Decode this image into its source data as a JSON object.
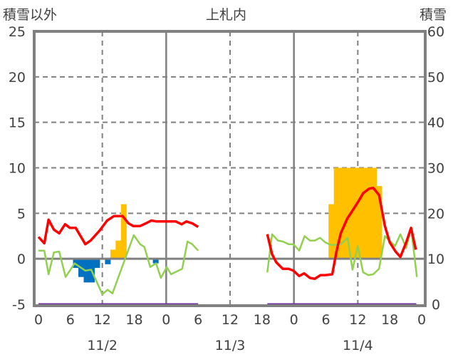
{
  "chart_data": {
    "type": "bar+line",
    "title": "上札内",
    "ylabel_left": "積雪以外",
    "ylabel_right": "積雪",
    "ylim_left": [
      -5,
      25
    ],
    "ylim_right": [
      0,
      60
    ],
    "yticks_left": [
      "-5",
      "0",
      "5",
      "10",
      "15",
      "20",
      "25"
    ],
    "yticks_right": [
      "0",
      "10",
      "20",
      "30",
      "40",
      "50",
      "60"
    ],
    "x_unit": "hours from 11/2 00:00",
    "xlim": [
      0,
      72
    ],
    "xtick_labels": [
      "0",
      "6",
      "12",
      "18",
      "0",
      "6",
      "12",
      "18",
      "0",
      "6",
      "12",
      "18",
      "0"
    ],
    "day_labels": [
      {
        "label": "11/2",
        "hour": 12
      },
      {
        "label": "11/3",
        "hour": 36
      },
      {
        "label": "11/4",
        "hour": 60
      }
    ],
    "grid": "horizontal dashed every 5; vertical solid at midnight, dashed at noon",
    "colors": {
      "red": "#ff0000",
      "green": "#92d050",
      "orange": "#ffc000",
      "blue": "#0070c0",
      "purple": "#7030a0",
      "frame": "#808080"
    },
    "bars_positive": {
      "name": "orange bars",
      "axis": "left",
      "x": [
        14,
        15,
        16,
        55,
        56,
        57,
        58,
        59,
        60,
        61,
        62,
        63,
        64
      ],
      "values": [
        1,
        2,
        6,
        6,
        10,
        10,
        10,
        10,
        10,
        10,
        10,
        10,
        8
      ]
    },
    "bars_negative": {
      "name": "blue bars",
      "axis": "left",
      "x": [
        7,
        8,
        9,
        10,
        11,
        13,
        22
      ],
      "values": [
        -1,
        -2,
        -2.6,
        -2.6,
        -1,
        -0.6,
        -0.5
      ]
    },
    "series": [
      {
        "name": "red line",
        "axis": "left",
        "segments": [
          {
            "x": [
              0,
              1.1,
              1.9,
              2.9,
              3.9,
              5,
              5.9,
              7,
              8.8,
              9.8,
              11.5,
              12.9,
              14.2,
              15.8,
              16.9,
              17.8,
              19.1,
              20.2,
              21.2,
              22.2,
              25.8,
              26.9,
              27.8,
              28.9,
              30
            ],
            "y": [
              2.4,
              1.7,
              4.3,
              3.2,
              2.8,
              3.8,
              3.4,
              3.4,
              1.6,
              2.0,
              3.1,
              4.2,
              4.7,
              4.7,
              3.9,
              3.6,
              3.6,
              3.9,
              4.2,
              4.1,
              4.1,
              3.8,
              4.1,
              3.9,
              3.5
            ]
          },
          {
            "x": [
              43,
              43.9,
              44.7,
              45.9,
              47,
              47.9,
              49,
              49.9,
              51,
              51.9,
              53,
              53.9,
              55.2,
              56,
              56.8,
              58,
              59,
              60.1,
              61,
              62.1,
              62.9,
              64,
              65.1,
              66,
              67.1,
              68,
              69.1,
              70,
              70.9
            ],
            "y": [
              2.7,
              0.5,
              -0.4,
              -1.1,
              -1.1,
              -1.3,
              -1.9,
              -1.6,
              -2.1,
              -2.2,
              -1.8,
              -1.8,
              -1.7,
              0.8,
              2.8,
              4.4,
              5.3,
              6.3,
              7.2,
              7.7,
              7.8,
              7.0,
              3.6,
              1.8,
              0.8,
              0.2,
              1.8,
              3.4,
              1.0
            ]
          }
        ]
      },
      {
        "name": "green line",
        "axis": "left",
        "segments": [
          {
            "x": [
              0,
              1.1,
              1.9,
              2.9,
              3.9,
              5.1,
              6.8,
              8.8,
              9.9,
              12,
              13,
              13.9,
              17.9,
              19.1,
              19.9,
              21,
              22.1,
              23,
              24.1,
              24.9,
              27,
              28,
              28.9,
              30
            ],
            "y": [
              0.9,
              0.9,
              -1.7,
              0.7,
              0.8,
              -2.0,
              -0.5,
              -1.3,
              -1.2,
              -3.9,
              -3.4,
              -3.8,
              2.6,
              1.6,
              1.3,
              -0.9,
              -0.5,
              -2.1,
              -0.9,
              -1.7,
              -1.1,
              1.9,
              1.6,
              0.9
            ]
          },
          {
            "x": [
              43,
              43.9,
              45,
              45.9,
              47,
              47.9,
              49,
              50,
              51,
              51.9,
              52.9,
              53.9,
              55,
              56.8,
              58.1,
              59,
              60,
              61,
              62,
              62.9,
              64,
              65.1,
              67,
              68,
              69.1,
              70,
              71.1
            ],
            "y": [
              -1.5,
              2.7,
              2.0,
              1.9,
              1.6,
              1.6,
              0.9,
              2.5,
              2.0,
              2.0,
              2.3,
              1.8,
              1.5,
              1.6,
              2.3,
              -1.2,
              1.4,
              -1.5,
              -1.8,
              -1.7,
              -1.1,
              2.5,
              1.4,
              2.7,
              1.2,
              3.4,
              -2.0
            ]
          }
        ]
      },
      {
        "name": "purple line",
        "axis": "right",
        "segments": [
          {
            "x": [
              0,
              30
            ],
            "y": [
              0,
              0
            ]
          },
          {
            "x": [
              43,
              71
            ],
            "y": [
              0,
              0
            ]
          }
        ]
      }
    ]
  }
}
